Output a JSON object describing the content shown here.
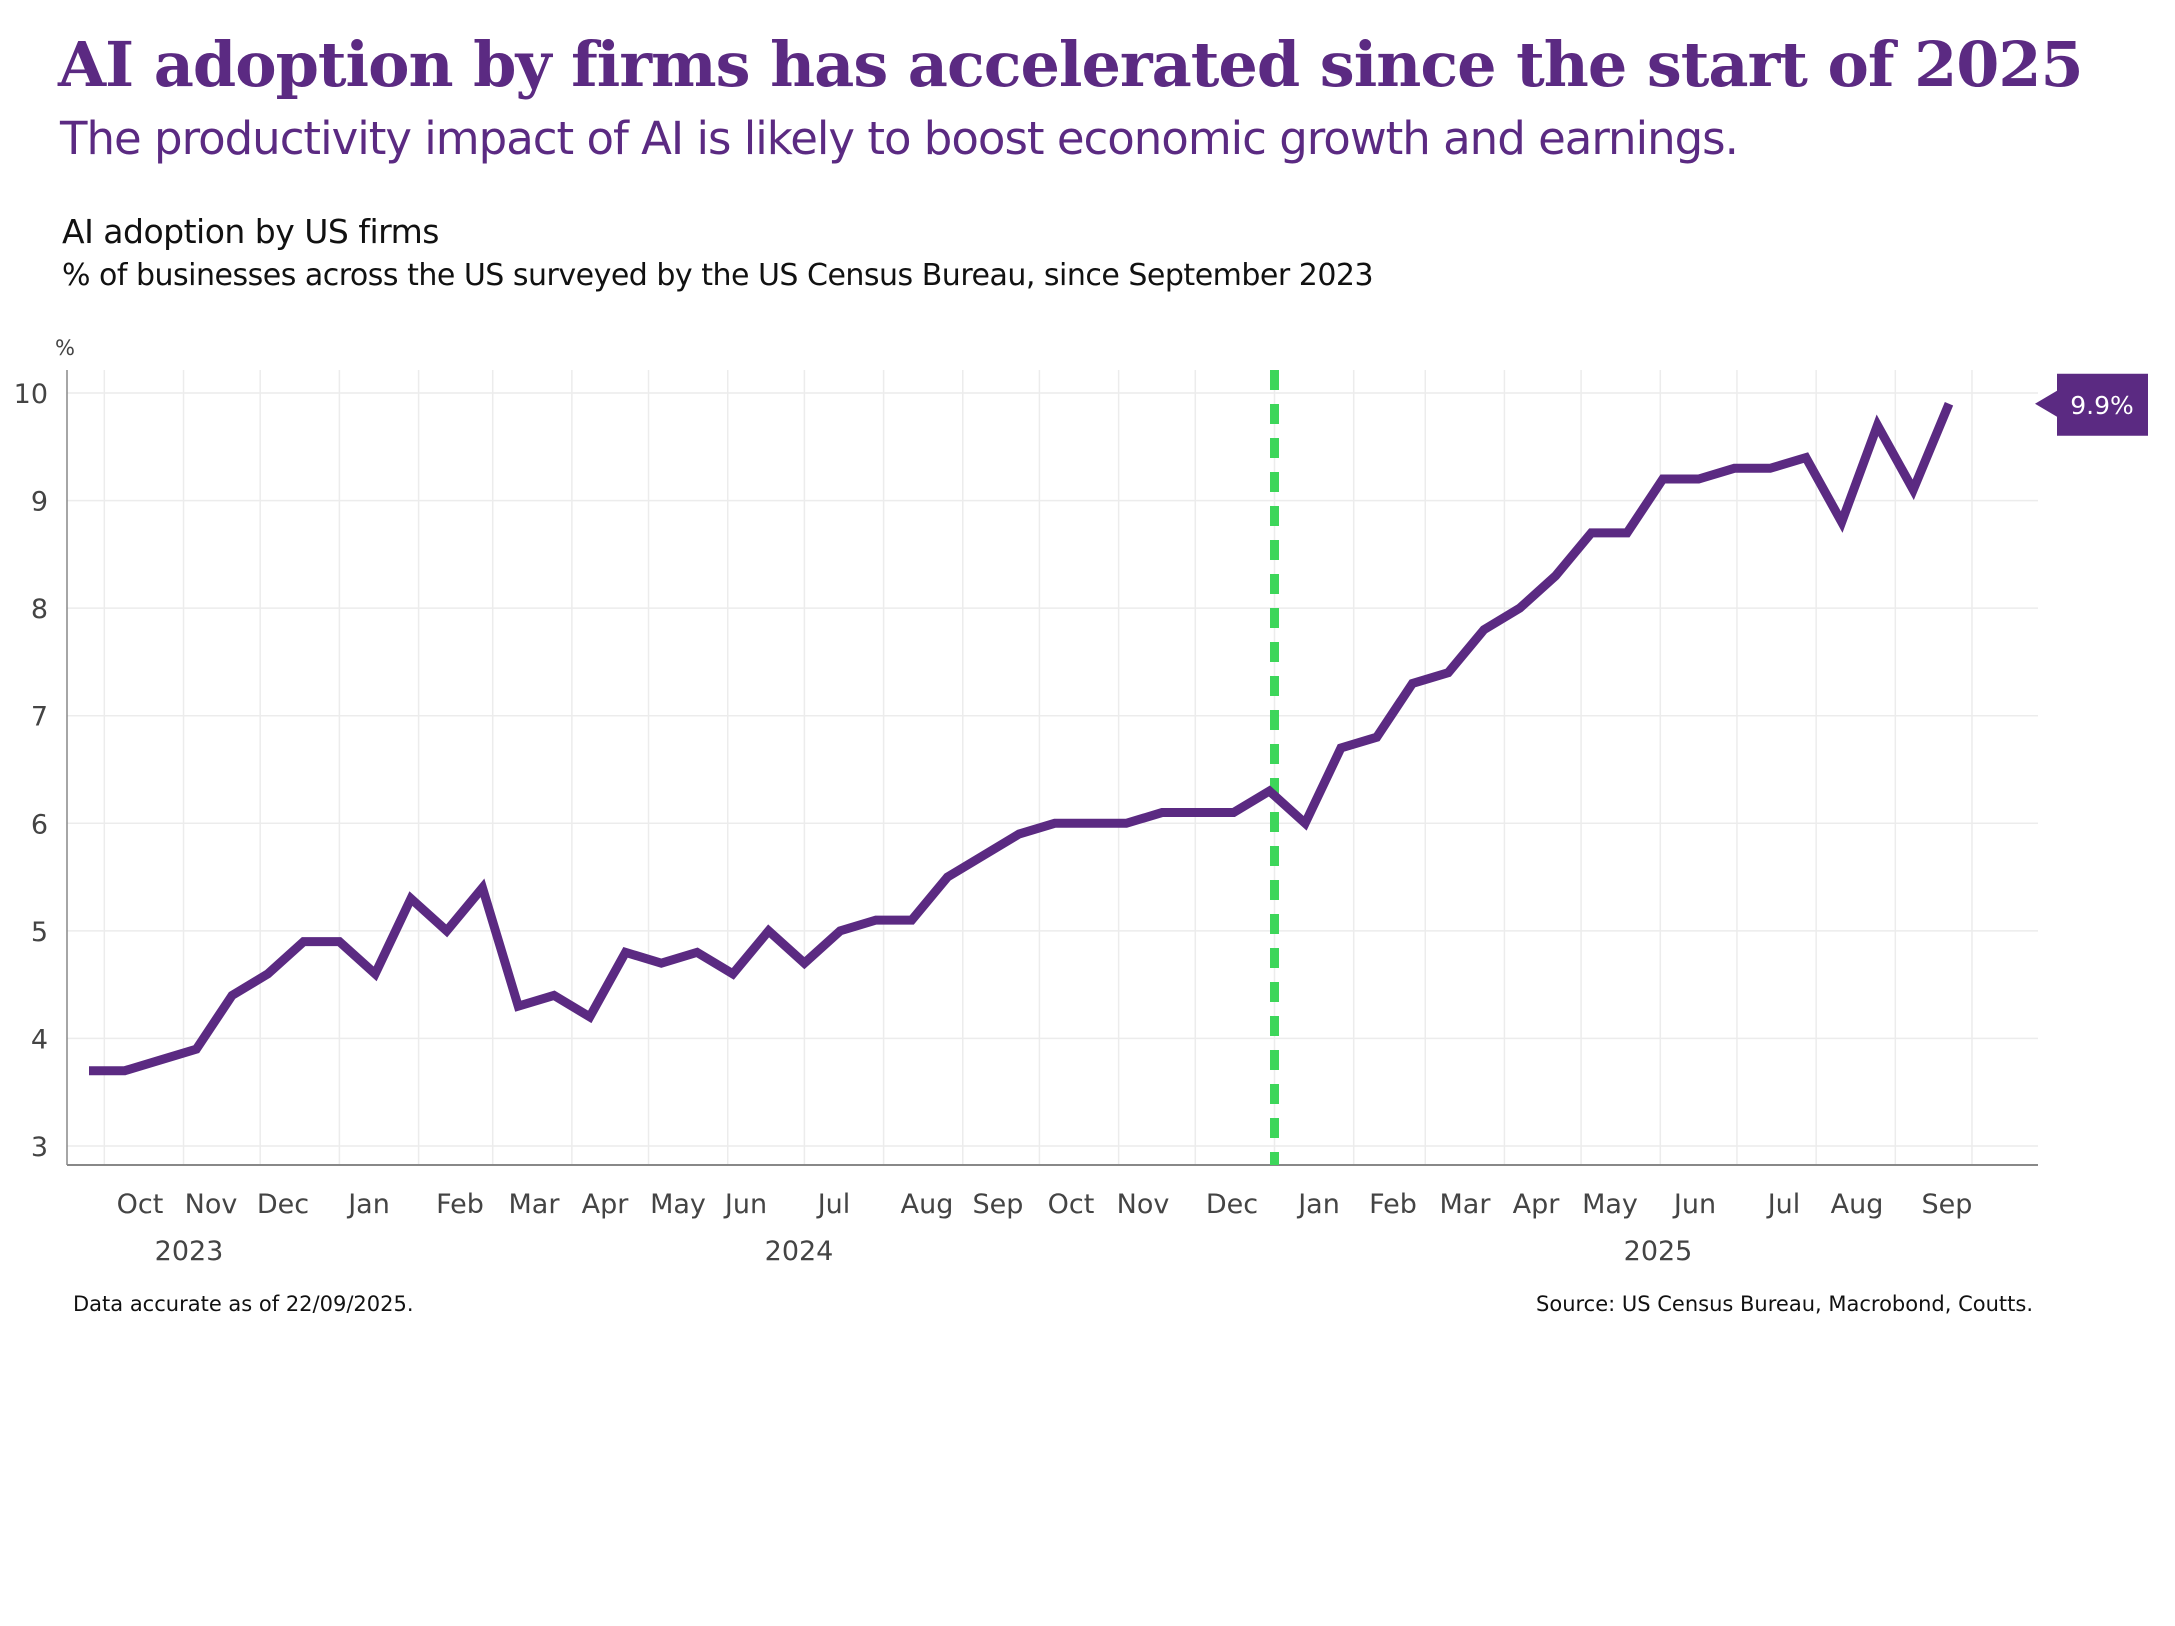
{
  "header": {
    "title": "AI adoption by firms has accelerated since the start of 2025",
    "subtitle": "The productivity impact of AI is likely to boost economic growth and earnings."
  },
  "footer": {
    "note": "Data accurate as of 22/09/2025.",
    "source": "Source: US Census Bureau, Macrobond, Coutts."
  },
  "colors": {
    "line": "#5b2a82",
    "marker": "#3dd65a",
    "grid": "#ececec",
    "axis": "#888888",
    "title": "#5b2a82"
  },
  "chart_data": {
    "type": "line",
    "title": "AI adoption by US firms",
    "subtitle": "% of businesses across the US surveyed by the US Census Bureau, since September 2023",
    "ylabel": "%",
    "ylim": [
      2.8,
      10.2
    ],
    "yticks": [
      3,
      4,
      5,
      6,
      7,
      8,
      9,
      10
    ],
    "xlim": [
      "2023-09-11",
      "2025-10-31"
    ],
    "grid": true,
    "xtick_labels": [
      "Oct",
      "Nov",
      "Dec",
      "Jan",
      "Feb",
      "Mar",
      "Apr",
      "May",
      "Jun",
      "Jul",
      "Aug",
      "Sep",
      "Oct",
      "Nov",
      "Dec",
      "Jan",
      "Feb",
      "Mar",
      "Apr",
      "May",
      "Jun",
      "Jul",
      "Aug",
      "Sep"
    ],
    "year_labels": [
      "2023",
      "2024",
      "2025"
    ],
    "vertical_marker": {
      "date": "2025-01-01",
      "style": "dashed"
    },
    "last_value_label": "9.9%",
    "x_start": "2023-09-25",
    "x_step_days": 14,
    "values": [
      3.7,
      3.7,
      3.8,
      3.9,
      4.4,
      4.6,
      4.9,
      4.9,
      4.6,
      5.3,
      5.0,
      5.4,
      4.3,
      4.4,
      4.2,
      4.8,
      4.7,
      4.8,
      4.6,
      5.0,
      4.7,
      5.0,
      5.1,
      5.1,
      5.5,
      5.7,
      5.9,
      6.0,
      6.0,
      6.0,
      6.1,
      6.1,
      6.1,
      6.3,
      6.0,
      6.7,
      6.8,
      7.3,
      7.4,
      7.8,
      8.0,
      8.3,
      8.7,
      8.7,
      9.2,
      9.2,
      9.3,
      9.3,
      9.4,
      8.8,
      9.7,
      9.1,
      9.9
    ]
  }
}
